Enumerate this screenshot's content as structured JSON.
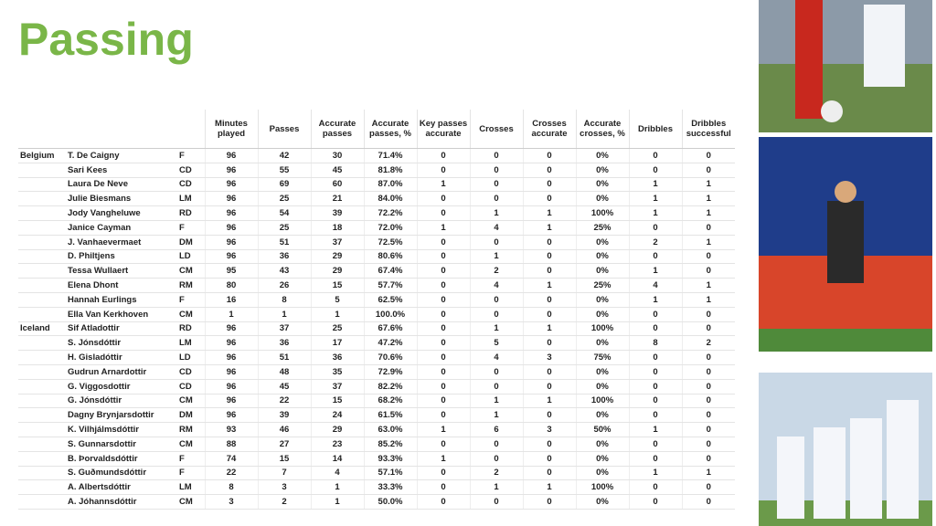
{
  "header": {
    "title": "Passing"
  },
  "table": {
    "columns": [
      "Minutes played",
      "Passes",
      "Accurate passes",
      "Accurate passes, %",
      "Key passes accurate",
      "Crosses",
      "Crosses accurate",
      "Accurate crosses, %",
      "Dribbles",
      "Dribbles successful"
    ],
    "groups": [
      {
        "team": "Belgium",
        "rows": [
          [
            "T. De Caigny",
            "F",
            96,
            42,
            30,
            "71.4%",
            0,
            0,
            0,
            "0%",
            0,
            0
          ],
          [
            "Sari Kees",
            "CD",
            96,
            55,
            45,
            "81.8%",
            0,
            0,
            0,
            "0%",
            0,
            0
          ],
          [
            "Laura De Neve",
            "CD",
            96,
            69,
            60,
            "87.0%",
            1,
            0,
            0,
            "0%",
            1,
            1
          ],
          [
            "Julie Biesmans",
            "LM",
            96,
            25,
            21,
            "84.0%",
            0,
            0,
            0,
            "0%",
            1,
            1
          ],
          [
            "Jody Vangheluwe",
            "RD",
            96,
            54,
            39,
            "72.2%",
            0,
            1,
            1,
            "100%",
            1,
            1
          ],
          [
            "Janice Cayman",
            "F",
            96,
            25,
            18,
            "72.0%",
            1,
            4,
            1,
            "25%",
            0,
            0
          ],
          [
            "J. Vanhaevermaet",
            "DM",
            96,
            51,
            37,
            "72.5%",
            0,
            0,
            0,
            "0%",
            2,
            1
          ],
          [
            "D. Philtjens",
            "LD",
            96,
            36,
            29,
            "80.6%",
            0,
            1,
            0,
            "0%",
            0,
            0
          ],
          [
            "Tessa Wullaert",
            "CM",
            95,
            43,
            29,
            "67.4%",
            0,
            2,
            0,
            "0%",
            1,
            0
          ],
          [
            "Elena Dhont",
            "RM",
            80,
            26,
            15,
            "57.7%",
            0,
            4,
            1,
            "25%",
            4,
            1
          ],
          [
            "Hannah Eurlings",
            "F",
            16,
            8,
            5,
            "62.5%",
            0,
            0,
            0,
            "0%",
            1,
            1
          ],
          [
            "Ella Van Kerkhoven",
            "CM",
            1,
            1,
            1,
            "100.0%",
            0,
            0,
            0,
            "0%",
            0,
            0
          ]
        ]
      },
      {
        "team": "Iceland",
        "rows": [
          [
            "Sif Atladottir",
            "RD",
            96,
            37,
            25,
            "67.6%",
            0,
            1,
            1,
            "100%",
            0,
            0
          ],
          [
            "S. Jónsdóttir",
            "LM",
            96,
            36,
            17,
            "47.2%",
            0,
            5,
            0,
            "0%",
            8,
            2
          ],
          [
            "H. Gisladóttir",
            "LD",
            96,
            51,
            36,
            "70.6%",
            0,
            4,
            3,
            "75%",
            0,
            0
          ],
          [
            "Gudrun Arnardottir",
            "CD",
            96,
            48,
            35,
            "72.9%",
            0,
            0,
            0,
            "0%",
            0,
            0
          ],
          [
            "G. Viggosdottir",
            "CD",
            96,
            45,
            37,
            "82.2%",
            0,
            0,
            0,
            "0%",
            0,
            0
          ],
          [
            "G. Jónsdóttir",
            "CM",
            96,
            22,
            15,
            "68.2%",
            0,
            1,
            1,
            "100%",
            0,
            0
          ],
          [
            "Dagny Brynjarsdottir",
            "DM",
            96,
            39,
            24,
            "61.5%",
            0,
            1,
            0,
            "0%",
            0,
            0
          ],
          [
            "K. Vilhjálmsdóttir",
            "RM",
            93,
            46,
            29,
            "63.0%",
            1,
            6,
            3,
            "50%",
            1,
            0
          ],
          [
            "S. Gunnarsdottir",
            "CM",
            88,
            27,
            23,
            "85.2%",
            0,
            0,
            0,
            "0%",
            0,
            0
          ],
          [
            "B. Þorvaldsdóttir",
            "F",
            74,
            15,
            14,
            "93.3%",
            1,
            0,
            0,
            "0%",
            0,
            0
          ],
          [
            "S. Guðmundsdóttir",
            "F",
            22,
            7,
            4,
            "57.1%",
            0,
            2,
            0,
            "0%",
            1,
            1
          ],
          [
            "A. Albertsdóttir",
            "LM",
            8,
            3,
            1,
            "33.3%",
            0,
            1,
            1,
            "100%",
            0,
            0
          ],
          [
            "A. Jóhannsdóttir",
            "CM",
            3,
            2,
            1,
            "50.0%",
            0,
            0,
            0,
            "0%",
            0,
            0
          ]
        ]
      }
    ]
  }
}
